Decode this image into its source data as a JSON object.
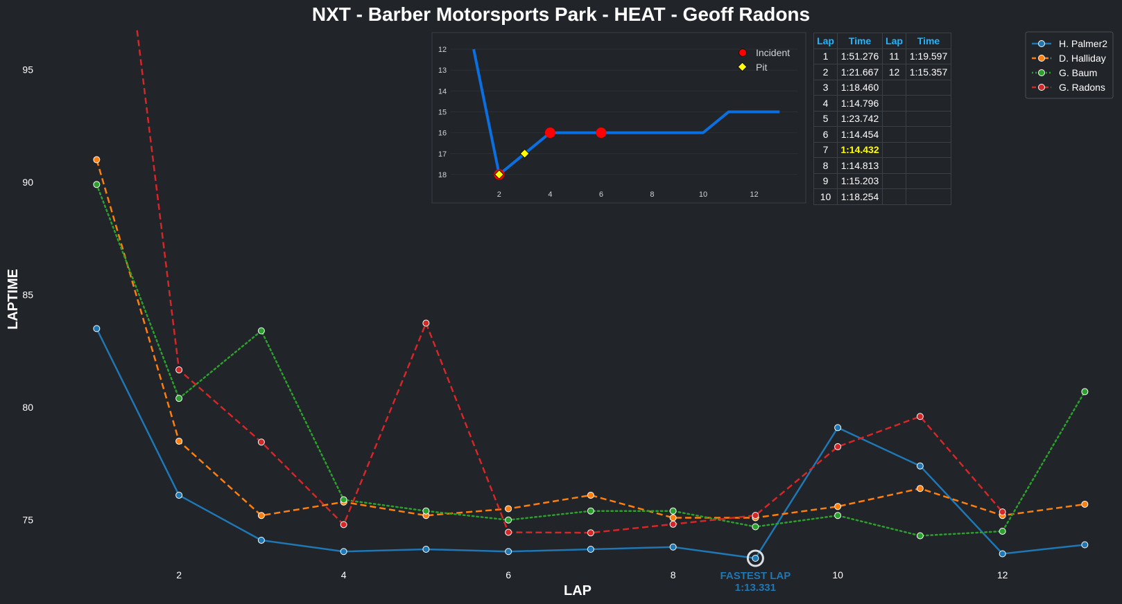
{
  "title": "NXT - Barber Motorsports Park - HEAT - Geoff Radons",
  "chart_data": {
    "type": "line",
    "title": "NXT - Barber Motorsports Park - HEAT - Geoff Radons",
    "xlabel": "LAP",
    "ylabel": "LAPTIME",
    "xlim": [
      0.5,
      13.3
    ],
    "ylim": [
      72.5,
      96.8
    ],
    "xticks": [
      2,
      4,
      6,
      8,
      10,
      12
    ],
    "yticks": [
      75,
      80,
      85,
      90,
      95
    ],
    "grid": false,
    "legend_position": "top-right",
    "series": [
      {
        "name": "H. Palmer2",
        "color": "#1f77b4",
        "dash": "solid",
        "x": [
          1,
          2,
          3,
          4,
          5,
          6,
          7,
          8,
          9,
          10,
          11,
          12,
          13
        ],
        "y": [
          83.5,
          76.1,
          74.1,
          73.6,
          73.7,
          73.6,
          73.7,
          73.8,
          73.3,
          79.1,
          77.4,
          73.5,
          73.9
        ]
      },
      {
        "name": "D. Halliday",
        "color": "#ff7f0e",
        "dash": "dashed",
        "x": [
          1,
          2,
          3,
          4,
          5,
          6,
          7,
          8,
          9,
          10,
          11,
          12,
          13
        ],
        "y": [
          91.0,
          78.5,
          75.2,
          75.8,
          75.2,
          75.5,
          76.1,
          75.1,
          75.1,
          75.6,
          76.4,
          75.2,
          75.7
        ]
      },
      {
        "name": "G. Baum",
        "color": "#2ca02c",
        "dash": "dotted",
        "x": [
          1,
          2,
          3,
          4,
          5,
          6,
          7,
          8,
          9,
          10,
          11,
          12,
          13
        ],
        "y": [
          89.9,
          80.4,
          83.4,
          75.9,
          75.4,
          75.0,
          75.4,
          75.4,
          74.7,
          75.2,
          74.3,
          74.5,
          80.7
        ]
      },
      {
        "name": "G. Radons",
        "color": "#d62728",
        "dash": "dashed",
        "x": [
          1,
          2,
          3,
          4,
          5,
          6,
          7,
          8,
          9,
          10,
          11,
          12
        ],
        "y": [
          111.276,
          81.667,
          78.46,
          74.796,
          83.742,
          74.454,
          74.432,
          74.813,
          75.203,
          78.254,
          79.597,
          75.357
        ]
      }
    ],
    "annotation": {
      "label": "FASTEST LAP",
      "value": "1:13.331",
      "x": 9,
      "y": 73.3
    },
    "inset": {
      "type": "line",
      "color": "#0a6fe0",
      "x": [
        1,
        2,
        3,
        4,
        5,
        6,
        7,
        8,
        9,
        10,
        11,
        12,
        13
      ],
      "y": [
        12,
        18,
        17,
        16,
        16,
        16,
        16,
        16,
        16,
        16,
        15,
        15,
        15
      ],
      "xlim": [
        0.1,
        13.7
      ],
      "ylim": [
        18.6,
        11.7
      ],
      "xticks": [
        2,
        4,
        6,
        8,
        10,
        12
      ],
      "yticks": [
        12,
        13,
        14,
        15,
        16,
        17,
        18
      ],
      "incidents": [
        2,
        4,
        6
      ],
      "pits": [
        2,
        3
      ],
      "legend": {
        "incident": "Incident",
        "pit": "Pit"
      }
    }
  },
  "table": {
    "headers": [
      "Lap",
      "Time",
      "Lap",
      "Time"
    ],
    "best_lap": "7",
    "rows": [
      [
        "1",
        "1:51.276",
        "11",
        "1:19.597"
      ],
      [
        "2",
        "1:21.667",
        "12",
        "1:15.357"
      ],
      [
        "3",
        "1:18.460",
        "",
        ""
      ],
      [
        "4",
        "1:14.796",
        "",
        ""
      ],
      [
        "5",
        "1:23.742",
        "",
        ""
      ],
      [
        "6",
        "1:14.454",
        "",
        ""
      ],
      [
        "7",
        "1:14.432",
        "",
        ""
      ],
      [
        "8",
        "1:14.813",
        "",
        ""
      ],
      [
        "9",
        "1:15.203",
        "",
        ""
      ],
      [
        "10",
        "1:18.254",
        "",
        ""
      ]
    ]
  }
}
